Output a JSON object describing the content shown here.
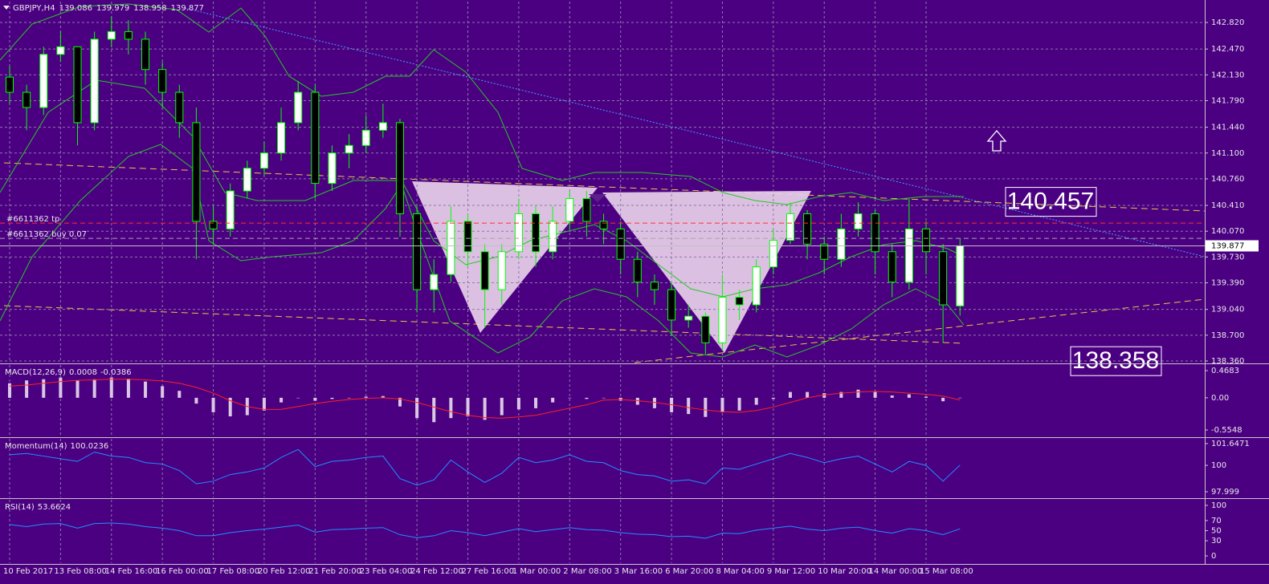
{
  "chart_data": [
    {
      "type": "candlestick",
      "title": "GBPJPY,H4",
      "x": [
        "10 Feb 2017",
        null,
        null,
        "13 Feb 08:00",
        null,
        null,
        "14 Feb 16:00",
        null,
        null,
        "16 Feb 00:00",
        null,
        null,
        "17 Feb 08:00",
        null,
        null,
        "20 Feb 12:00",
        null,
        null,
        "21 Feb 20:00",
        null,
        null,
        "23 Feb 04:00",
        null,
        null,
        "24 Feb 12:00",
        null,
        null,
        "27 Feb 16:00",
        null,
        null,
        "1 Mar 00:00",
        null,
        null,
        "2 Mar 08:00",
        null,
        null,
        "3 Mar 16:00",
        null,
        null,
        "6 Mar 20:00",
        null,
        null,
        "8 Mar 04:00",
        null,
        null,
        "9 Mar 12:00",
        null,
        null,
        "10 Mar 20:00",
        null,
        null,
        "14 Mar 00:00",
        null,
        null,
        "15 Mar 08:00",
        null,
        null
      ],
      "open": [
        142.1,
        141.9,
        141.7,
        142.4,
        142.5,
        141.5,
        142.6,
        142.7,
        142.6,
        142.2,
        141.9,
        141.5,
        140.2,
        140.1,
        140.6,
        140.9,
        141.1,
        141.5,
        141.9,
        140.7,
        141.1,
        141.2,
        141.4,
        141.5,
        140.3,
        139.3,
        139.5,
        140.2,
        139.8,
        139.3,
        139.8,
        140.3,
        139.8,
        140.2,
        140.5,
        140.2,
        140.1,
        139.7,
        139.4,
        139.3,
        138.9,
        138.95,
        138.6,
        139.2,
        139.1,
        139.6,
        139.95,
        140.3,
        139.9,
        139.7,
        140.1,
        140.3,
        139.8,
        139.4,
        140.1,
        139.8,
        139.086
      ],
      "high": [
        142.25,
        142.0,
        142.5,
        142.7,
        142.5,
        142.7,
        142.9,
        142.85,
        142.7,
        142.3,
        142.0,
        141.7,
        140.4,
        140.7,
        141.0,
        141.25,
        141.7,
        142.05,
        142.0,
        141.2,
        141.35,
        141.6,
        141.75,
        141.55,
        140.4,
        139.7,
        140.4,
        140.3,
        139.9,
        139.9,
        140.5,
        140.4,
        140.4,
        140.6,
        140.6,
        140.3,
        140.2,
        139.8,
        139.5,
        139.4,
        139.1,
        139.0,
        139.5,
        139.3,
        139.7,
        140.1,
        140.45,
        140.35,
        140.0,
        140.3,
        140.45,
        140.35,
        139.9,
        140.5,
        140.2,
        139.9,
        139.979
      ],
      "low": [
        141.75,
        141.4,
        141.6,
        142.3,
        141.2,
        141.4,
        142.5,
        142.4,
        142.0,
        141.7,
        141.3,
        139.7,
        139.9,
        140.0,
        140.5,
        140.8,
        141.0,
        141.4,
        140.5,
        140.6,
        140.9,
        141.1,
        141.3,
        140.0,
        139.0,
        139.0,
        139.4,
        139.6,
        138.8,
        139.1,
        139.7,
        139.6,
        139.7,
        140.1,
        140.0,
        139.9,
        139.5,
        139.2,
        139.1,
        138.7,
        138.8,
        138.45,
        138.5,
        138.9,
        139.0,
        139.5,
        139.9,
        139.7,
        139.5,
        139.6,
        140.0,
        139.5,
        139.2,
        139.3,
        139.5,
        138.6,
        138.958
      ],
      "close": [
        141.9,
        141.7,
        142.4,
        142.5,
        141.5,
        142.6,
        142.7,
        142.6,
        142.2,
        141.9,
        141.5,
        140.2,
        140.1,
        140.6,
        140.9,
        141.1,
        141.5,
        141.9,
        140.7,
        141.1,
        141.2,
        141.4,
        141.5,
        140.3,
        139.3,
        139.5,
        140.2,
        139.8,
        139.3,
        139.8,
        140.3,
        139.8,
        140.2,
        140.5,
        140.2,
        140.1,
        139.7,
        139.4,
        139.3,
        138.9,
        138.95,
        138.6,
        139.2,
        139.1,
        139.6,
        139.95,
        140.3,
        139.9,
        139.7,
        140.1,
        140.3,
        139.8,
        139.4,
        140.1,
        139.8,
        139.1,
        139.877
      ],
      "bull_color": "#ffffff",
      "bear_color": "#000000",
      "wick_color": "#00ff00",
      "ylim": [
        138.339,
        143.095
      ],
      "yticks": [
        {
          "value": 142.82,
          "label": "142.820"
        },
        {
          "value": 142.47,
          "label": "142.470"
        },
        {
          "value": 142.13,
          "label": "142.130"
        },
        {
          "value": 141.79,
          "label": "141.790"
        },
        {
          "value": 141.44,
          "label": "141.440"
        },
        {
          "value": 141.1,
          "label": "141.100"
        },
        {
          "value": 140.76,
          "label": "140.760"
        },
        {
          "value": 140.41,
          "label": "140.410"
        },
        {
          "value": 140.07,
          "label": "140.070"
        },
        {
          "value": 139.73,
          "label": "139.730"
        },
        {
          "value": 139.39,
          "label": "139.390"
        },
        {
          "value": 139.04,
          "label": "139.040"
        },
        {
          "value": 138.7,
          "label": "138.700"
        },
        {
          "value": 138.36,
          "label": "138.360"
        }
      ],
      "grid": true,
      "orders": [
        {
          "label": "#6611362 tp",
          "price": 140.177,
          "color": "#ff3030"
        },
        {
          "label": "#6611362 buy 0.07",
          "price": 139.976,
          "color": "#a8a8a8"
        }
      ],
      "levels": [
        140.457,
        138.358
      ]
    },
    {
      "type": "macd",
      "title": "MACD(12,26,9)",
      "histogram": [
        0.25,
        0.3,
        0.32,
        0.35,
        0.3,
        0.32,
        0.35,
        0.33,
        0.28,
        0.2,
        0.12,
        -0.1,
        -0.25,
        -0.32,
        -0.3,
        -0.22,
        -0.08,
        0.0,
        -0.05,
        -0.02,
        0.0,
        0.02,
        0.03,
        -0.15,
        -0.35,
        -0.42,
        -0.35,
        -0.32,
        -0.38,
        -0.3,
        -0.2,
        -0.18,
        -0.08,
        0.0,
        -0.02,
        0.0,
        -0.05,
        -0.12,
        -0.18,
        -0.25,
        -0.28,
        -0.33,
        -0.25,
        -0.22,
        -0.12,
        -0.02,
        0.1,
        0.1,
        0.08,
        0.1,
        0.14,
        0.1,
        0.04,
        0.06,
        0.02,
        -0.06,
        0.0008
      ],
      "signal": [
        0.2,
        0.22,
        0.25,
        0.28,
        0.3,
        0.31,
        0.32,
        0.32,
        0.31,
        0.29,
        0.25,
        0.18,
        0.08,
        -0.05,
        -0.15,
        -0.2,
        -0.2,
        -0.15,
        -0.1,
        -0.06,
        -0.03,
        -0.01,
        0.0,
        -0.02,
        -0.08,
        -0.16,
        -0.24,
        -0.3,
        -0.34,
        -0.35,
        -0.33,
        -0.3,
        -0.24,
        -0.18,
        -0.12,
        -0.04,
        -0.03,
        -0.05,
        -0.08,
        -0.12,
        -0.17,
        -0.21,
        -0.24,
        -0.25,
        -0.22,
        -0.16,
        -0.08,
        0.0,
        0.05,
        0.08,
        0.1,
        0.11,
        0.1,
        0.08,
        0.06,
        0.03,
        -0.0386
      ],
      "histogram_color": "#d8c8e4",
      "signal_color": "#ff2020",
      "ylim": [
        -0.6515,
        0.565
      ],
      "yticks": [
        0.4683,
        {
          "value": 0,
          "label": "0.00"
        },
        -0.5548
      ]
    },
    {
      "type": "line",
      "title": "Momentum(14)",
      "values": [
        100.8,
        100.9,
        100.7,
        100.5,
        100.3,
        101.0,
        100.7,
        100.6,
        100.2,
        100.1,
        99.6,
        98.6,
        98.8,
        99.3,
        99.5,
        99.8,
        100.6,
        101.2,
        99.9,
        100.3,
        100.4,
        100.6,
        100.7,
        99.0,
        98.5,
        98.9,
        100.4,
        99.5,
        98.7,
        99.4,
        100.6,
        100.2,
        100.4,
        100.8,
        100.3,
        100.2,
        99.6,
        99.3,
        99.2,
        98.8,
        98.9,
        98.6,
        99.8,
        99.7,
        100.1,
        100.5,
        100.9,
        100.6,
        100.2,
        100.5,
        100.7,
        100.1,
        99.5,
        100.3,
        100.0,
        98.8,
        100.0236
      ],
      "color": "#1e90ff",
      "ylim": [
        97.574,
        102.01
      ],
      "yticks": [
        101.6471,
        100,
        97.999
      ]
    },
    {
      "type": "line",
      "title": "RSI(14)",
      "values": [
        62,
        58,
        63,
        64,
        55,
        64,
        65,
        63,
        58,
        55,
        50,
        40,
        40,
        46,
        50,
        53,
        57,
        61,
        47,
        52,
        53,
        55,
        56,
        42,
        36,
        40,
        50,
        46,
        40,
        47,
        54,
        48,
        52,
        56,
        52,
        51,
        46,
        43,
        42,
        38,
        39,
        35,
        45,
        44,
        51,
        55,
        59,
        53,
        50,
        55,
        57,
        50,
        45,
        54,
        50,
        42,
        53.6624
      ],
      "color": "#1e90ff",
      "ylim": [
        -14.3,
        111.1
      ],
      "yticks": [
        100,
        70,
        50,
        30,
        0
      ]
    }
  ]
}
